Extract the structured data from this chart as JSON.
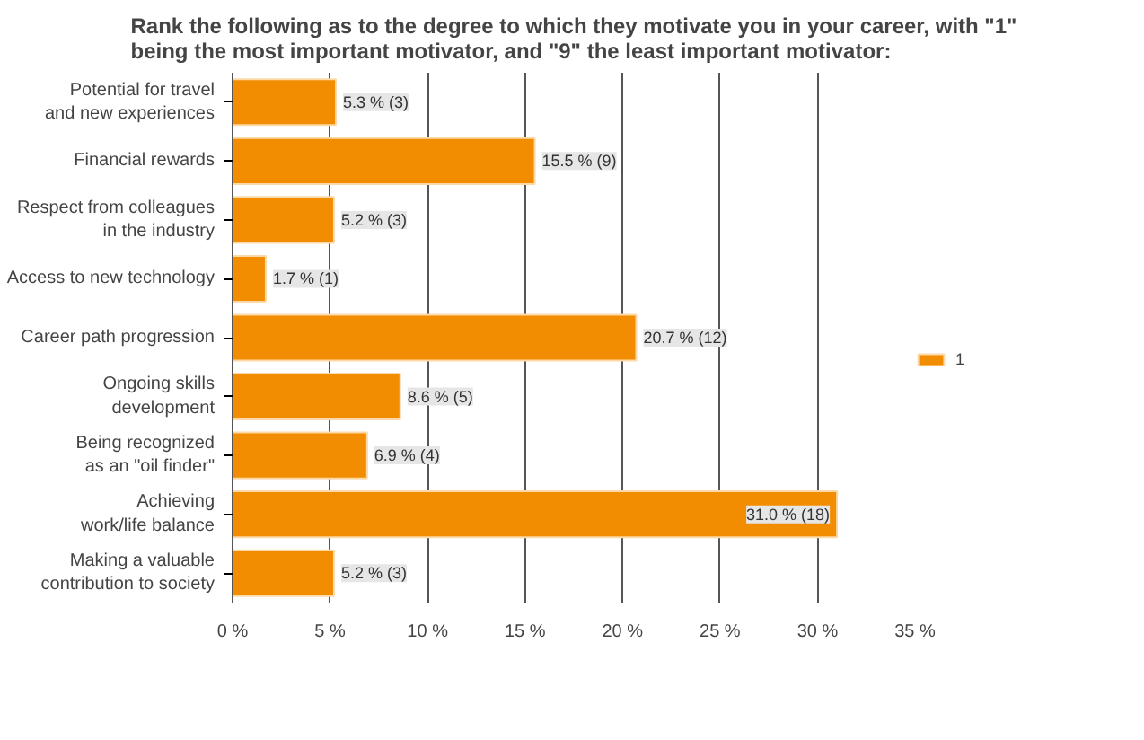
{
  "chart_data": {
    "type": "bar",
    "orientation": "horizontal",
    "title": "Rank the following as to the degree to which they motivate you in your career, with \"1\"\nbeing the most important motivator, and \"9\" the least important motivator:",
    "categories": [
      "Potential for travel\nand new experiences",
      "Financial rewards",
      "Respect from colleagues\nin the industry",
      "Access to new technology",
      "Career path progression",
      "Ongoing skills\ndevelopment",
      "Being recognized\nas an \"oil finder\"",
      "Achieving\nwork/life balance",
      "Making a valuable\ncontribution to society"
    ],
    "series": [
      {
        "name": "1",
        "color": "#f28c00",
        "values": [
          5.3,
          15.5,
          5.2,
          1.7,
          20.7,
          8.6,
          6.9,
          31.0,
          5.2
        ],
        "value_labels": [
          "5.3 % (3)",
          "15.5 % (9)",
          "5.2 % (3)",
          "1.7 % (1)",
          "20.7 % (12)",
          "8.6 % (5)",
          "6.9 % (4)",
          "31.0 % (18)",
          "5.2 % (3)"
        ]
      }
    ],
    "xlim": [
      0,
      35
    ],
    "xticks": [
      {
        "value": 0,
        "label": "0 %"
      },
      {
        "value": 5,
        "label": "5 %"
      },
      {
        "value": 10,
        "label": "10 %"
      },
      {
        "value": 15,
        "label": "15 %"
      },
      {
        "value": 20,
        "label": "20 %"
      },
      {
        "value": 25,
        "label": "25 %"
      },
      {
        "value": 30,
        "label": "30 %"
      },
      {
        "value": 35,
        "label": "35 %"
      }
    ],
    "grid": "x",
    "legend": "right"
  }
}
